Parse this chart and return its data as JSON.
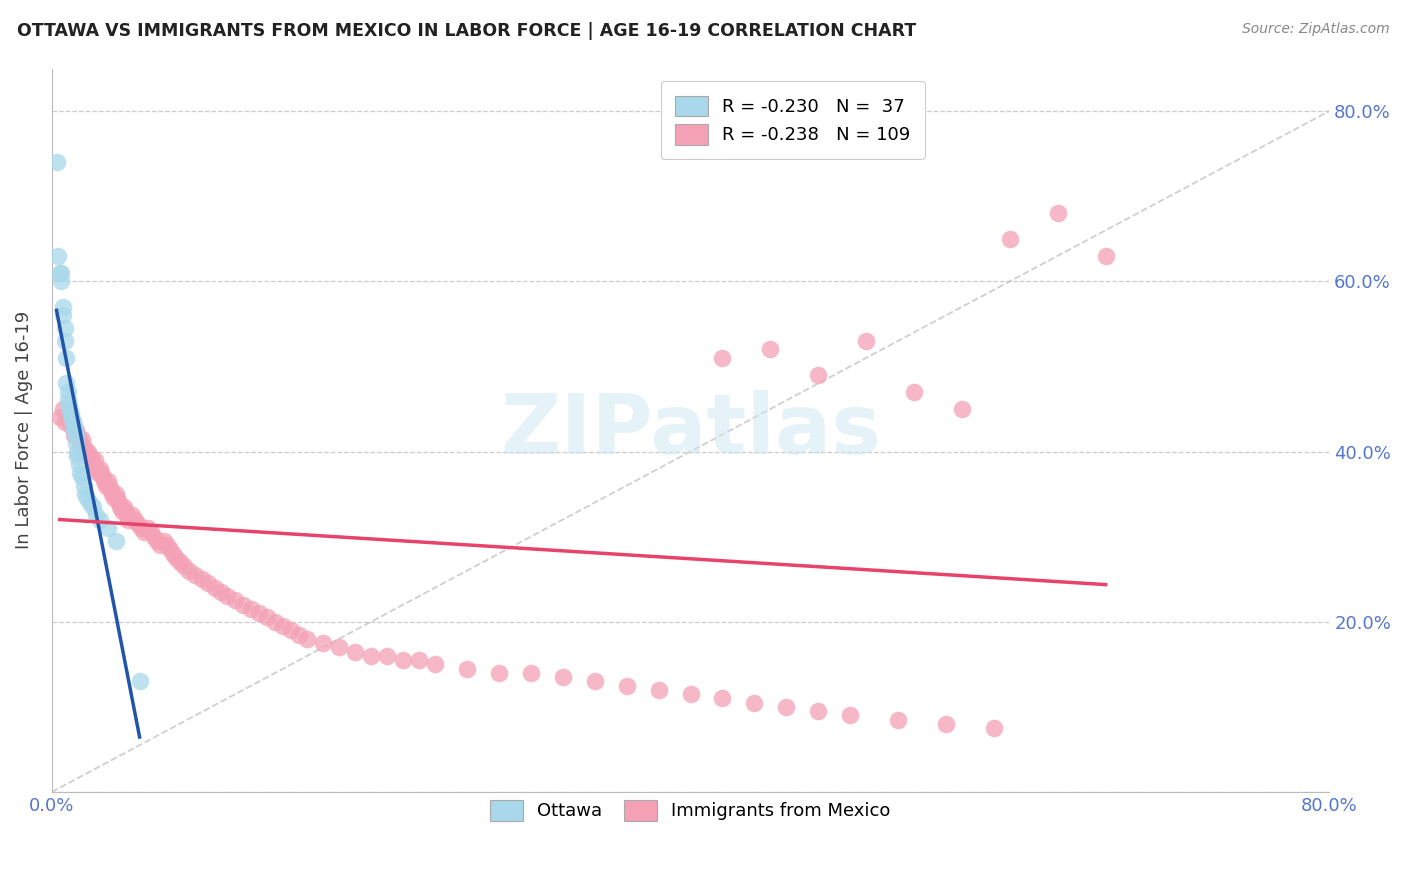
{
  "title": "OTTAWA VS IMMIGRANTS FROM MEXICO IN LABOR FORCE | AGE 16-19 CORRELATION CHART",
  "source": "Source: ZipAtlas.com",
  "ylabel": "In Labor Force | Age 16-19",
  "xmin": 0.0,
  "xmax": 0.8,
  "ymin": 0.0,
  "ymax": 0.85,
  "yticks": [
    0.0,
    0.2,
    0.4,
    0.6,
    0.8
  ],
  "ytick_labels": [
    "",
    "20.0%",
    "40.0%",
    "60.0%",
    "80.0%"
  ],
  "xticks": [
    0.0,
    0.1,
    0.2,
    0.3,
    0.4,
    0.5,
    0.6,
    0.7,
    0.8
  ],
  "xtick_labels": [
    "0.0%",
    "",
    "",
    "",
    "",
    "",
    "",
    "",
    "80.0%"
  ],
  "ottawa_R": -0.23,
  "ottawa_N": 37,
  "mexico_R": -0.238,
  "mexico_N": 109,
  "ottawa_color": "#a8d8ea",
  "mexico_color": "#f4a0b5",
  "ottawa_line_color": "#2255aa",
  "mexico_line_color": "#e8436a",
  "diagonal_color": "#bbbbbb",
  "background_color": "#ffffff",
  "watermark": "ZIPatlas",
  "ottawa_x": [
    0.003,
    0.004,
    0.005,
    0.006,
    0.006,
    0.007,
    0.007,
    0.008,
    0.008,
    0.009,
    0.009,
    0.01,
    0.01,
    0.011,
    0.011,
    0.012,
    0.012,
    0.013,
    0.014,
    0.014,
    0.015,
    0.015,
    0.016,
    0.016,
    0.017,
    0.018,
    0.019,
    0.02,
    0.021,
    0.022,
    0.024,
    0.026,
    0.028,
    0.03,
    0.035,
    0.04,
    0.055
  ],
  "ottawa_y": [
    0.74,
    0.63,
    0.61,
    0.61,
    0.6,
    0.57,
    0.56,
    0.545,
    0.53,
    0.51,
    0.48,
    0.47,
    0.46,
    0.455,
    0.45,
    0.445,
    0.44,
    0.435,
    0.43,
    0.425,
    0.42,
    0.41,
    0.4,
    0.395,
    0.385,
    0.375,
    0.37,
    0.36,
    0.35,
    0.345,
    0.34,
    0.335,
    0.325,
    0.32,
    0.31,
    0.295,
    0.13
  ],
  "mexico_x": [
    0.005,
    0.007,
    0.008,
    0.01,
    0.011,
    0.012,
    0.013,
    0.014,
    0.015,
    0.016,
    0.017,
    0.018,
    0.019,
    0.02,
    0.021,
    0.022,
    0.023,
    0.024,
    0.025,
    0.026,
    0.027,
    0.028,
    0.029,
    0.03,
    0.031,
    0.032,
    0.033,
    0.034,
    0.035,
    0.036,
    0.037,
    0.038,
    0.039,
    0.04,
    0.041,
    0.042,
    0.043,
    0.044,
    0.045,
    0.046,
    0.047,
    0.048,
    0.05,
    0.052,
    0.054,
    0.056,
    0.058,
    0.06,
    0.062,
    0.064,
    0.066,
    0.068,
    0.07,
    0.072,
    0.074,
    0.076,
    0.078,
    0.08,
    0.083,
    0.086,
    0.09,
    0.094,
    0.098,
    0.102,
    0.106,
    0.11,
    0.115,
    0.12,
    0.125,
    0.13,
    0.135,
    0.14,
    0.145,
    0.15,
    0.155,
    0.16,
    0.17,
    0.18,
    0.19,
    0.2,
    0.21,
    0.22,
    0.23,
    0.24,
    0.26,
    0.28,
    0.3,
    0.32,
    0.34,
    0.36,
    0.38,
    0.4,
    0.42,
    0.44,
    0.46,
    0.48,
    0.5,
    0.53,
    0.56,
    0.59,
    0.42,
    0.45,
    0.48,
    0.51,
    0.54,
    0.57,
    0.6,
    0.63,
    0.66
  ],
  "mexico_y": [
    0.44,
    0.45,
    0.435,
    0.445,
    0.44,
    0.43,
    0.435,
    0.42,
    0.425,
    0.42,
    0.415,
    0.41,
    0.415,
    0.405,
    0.4,
    0.395,
    0.4,
    0.395,
    0.39,
    0.385,
    0.39,
    0.38,
    0.375,
    0.38,
    0.375,
    0.37,
    0.365,
    0.36,
    0.365,
    0.36,
    0.355,
    0.35,
    0.345,
    0.35,
    0.345,
    0.34,
    0.335,
    0.33,
    0.335,
    0.33,
    0.325,
    0.32,
    0.325,
    0.32,
    0.315,
    0.31,
    0.305,
    0.31,
    0.305,
    0.3,
    0.295,
    0.29,
    0.295,
    0.29,
    0.285,
    0.28,
    0.275,
    0.27,
    0.265,
    0.26,
    0.255,
    0.25,
    0.245,
    0.24,
    0.235,
    0.23,
    0.225,
    0.22,
    0.215,
    0.21,
    0.205,
    0.2,
    0.195,
    0.19,
    0.185,
    0.18,
    0.175,
    0.17,
    0.165,
    0.16,
    0.16,
    0.155,
    0.155,
    0.15,
    0.145,
    0.14,
    0.14,
    0.135,
    0.13,
    0.125,
    0.12,
    0.115,
    0.11,
    0.105,
    0.1,
    0.095,
    0.09,
    0.085,
    0.08,
    0.075,
    0.51,
    0.52,
    0.49,
    0.53,
    0.47,
    0.45,
    0.65,
    0.68,
    0.63
  ]
}
